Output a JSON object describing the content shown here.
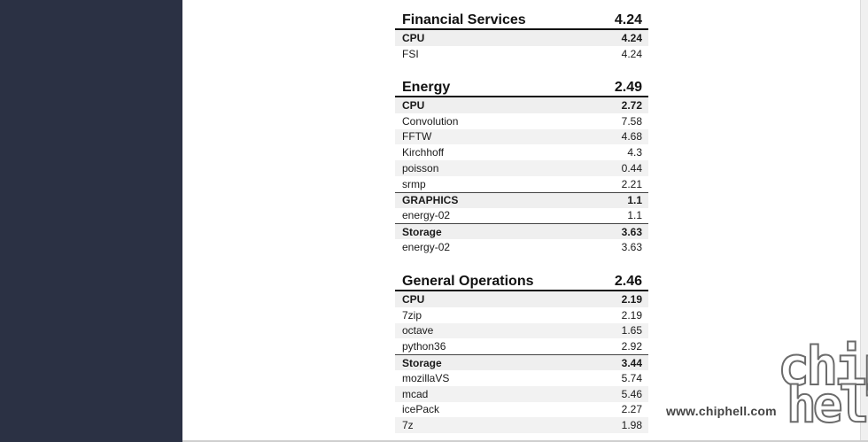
{
  "sections": [
    {
      "title": "Financial Services",
      "score": "4.24",
      "rows": [
        {
          "label": "CPU",
          "value": "4.24",
          "kind": "cat"
        },
        {
          "label": "FSI",
          "value": "4.24"
        }
      ]
    },
    {
      "title": "Energy",
      "score": "2.49",
      "rows": [
        {
          "label": "CPU",
          "value": "2.72",
          "kind": "cat"
        },
        {
          "label": "Convolution",
          "value": "7.58"
        },
        {
          "label": "FFTW",
          "value": "4.68"
        },
        {
          "label": "Kirchhoff",
          "value": "4.3"
        },
        {
          "label": "poisson",
          "value": "0.44"
        },
        {
          "label": "srmp",
          "value": "2.21"
        },
        {
          "label": "GRAPHICS",
          "value": "1.1",
          "kind": "cat"
        },
        {
          "label": "energy-02",
          "value": "1.1"
        },
        {
          "label": "Storage",
          "value": "3.63",
          "kind": "cat"
        },
        {
          "label": "energy-02",
          "value": "3.63"
        }
      ]
    },
    {
      "title": "General Operations",
      "score": "2.46",
      "rows": [
        {
          "label": "CPU",
          "value": "2.19",
          "kind": "cat"
        },
        {
          "label": "7zip",
          "value": "2.19"
        },
        {
          "label": "octave",
          "value": "1.65"
        },
        {
          "label": "python36",
          "value": "2.92"
        },
        {
          "label": "Storage",
          "value": "3.44",
          "kind": "cat"
        },
        {
          "label": "mozillaVS",
          "value": "5.74"
        },
        {
          "label": "mcad",
          "value": "5.46"
        },
        {
          "label": "icePack",
          "value": "2.27"
        },
        {
          "label": "7z",
          "value": "1.98"
        }
      ]
    }
  ],
  "watermark": {
    "url": "www.chiphell.com",
    "logo_top": "chip",
    "logo_bottom": "hell"
  }
}
